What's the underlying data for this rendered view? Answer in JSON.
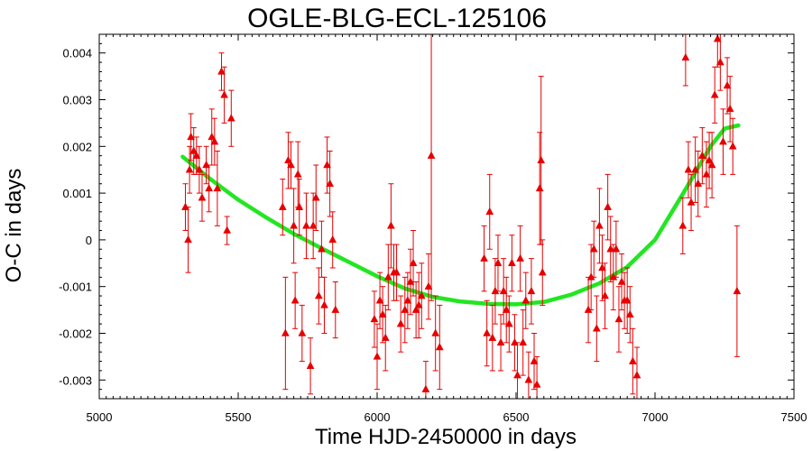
{
  "chart_data": {
    "type": "scatter",
    "title": "OGLE-BLG-ECL-125106",
    "xlabel": "Time HJD-2450000 in days",
    "ylabel": "O-C in days",
    "xlim": [
      5000,
      7500
    ],
    "ylim": [
      -0.0034,
      0.0044
    ],
    "x_ticks": [
      5000,
      5500,
      6000,
      6500,
      7000,
      7500
    ],
    "x_tick_labels": [
      "5000",
      "5500",
      "6000",
      "6500",
      "7000",
      "7500"
    ],
    "y_ticks": [
      -0.003,
      -0.002,
      -0.001,
      0,
      0.001,
      0.002,
      0.003,
      0.004
    ],
    "y_tick_labels": [
      "-0.003",
      "-0.002",
      "-0.001",
      "0",
      "0.001",
      "0.002",
      "0.003",
      "0.004"
    ],
    "grid": false,
    "legend": "none",
    "colors": {
      "points": "#e60000",
      "fit": "#22e622",
      "axes": "#000000"
    },
    "series": [
      {
        "kind": "points_with_error_bars",
        "marker": "triangle",
        "points": [
          {
            "x": 5310,
            "y": 0.0007,
            "err": 0.0005
          },
          {
            "x": 5320,
            "y": 0.0,
            "err": 0.0007
          },
          {
            "x": 5325,
            "y": 0.0015,
            "err": 0.0005
          },
          {
            "x": 5330,
            "y": 0.0022,
            "err": 0.0005
          },
          {
            "x": 5340,
            "y": 0.0019,
            "err": 0.0005
          },
          {
            "x": 5350,
            "y": 0.0018,
            "err": 0.0004
          },
          {
            "x": 5360,
            "y": 0.0015,
            "err": 0.0005
          },
          {
            "x": 5370,
            "y": 0.0009,
            "err": 0.0005
          },
          {
            "x": 5385,
            "y": 0.0016,
            "err": 0.0004
          },
          {
            "x": 5395,
            "y": 0.0011,
            "err": 0.0005
          },
          {
            "x": 5405,
            "y": 0.0022,
            "err": 0.0006
          },
          {
            "x": 5415,
            "y": 0.0021,
            "err": 0.0005
          },
          {
            "x": 5425,
            "y": 0.0011,
            "err": 0.0008
          },
          {
            "x": 5440,
            "y": 0.0036,
            "err": 0.0004
          },
          {
            "x": 5450,
            "y": 0.0031,
            "err": 0.0006
          },
          {
            "x": 5460,
            "y": 0.0002,
            "err": 0.0003
          },
          {
            "x": 5475,
            "y": 0.0026,
            "err": 0.0006
          },
          {
            "x": 5660,
            "y": 0.0007,
            "err": 0.0006
          },
          {
            "x": 5670,
            "y": -0.002,
            "err": 0.0012
          },
          {
            "x": 5680,
            "y": 0.0017,
            "err": 0.0006
          },
          {
            "x": 5690,
            "y": 0.0016,
            "err": 0.0005
          },
          {
            "x": 5700,
            "y": 0.0003,
            "err": 0.0008
          },
          {
            "x": 5705,
            "y": -0.0013,
            "err": 0.0006
          },
          {
            "x": 5715,
            "y": 0.0014,
            "err": 0.0007
          },
          {
            "x": 5720,
            "y": 0.0007,
            "err": 0.0006
          },
          {
            "x": 5730,
            "y": -0.002,
            "err": 0.0006
          },
          {
            "x": 5745,
            "y": 0.0003,
            "err": 0.0007
          },
          {
            "x": 5760,
            "y": -0.0027,
            "err": 0.0006
          },
          {
            "x": 5770,
            "y": 0.0003,
            "err": 0.0007
          },
          {
            "x": 5780,
            "y": 0.0009,
            "err": 0.0007
          },
          {
            "x": 5790,
            "y": -0.0012,
            "err": 0.0006
          },
          {
            "x": 5800,
            "y": -0.0002,
            "err": 0.0006
          },
          {
            "x": 5810,
            "y": -0.0014,
            "err": 0.0006
          },
          {
            "x": 5820,
            "y": 0.0016,
            "err": 0.0006
          },
          {
            "x": 5830,
            "y": 0.0012,
            "err": 0.0007
          },
          {
            "x": 5840,
            "y": 0.0,
            "err": 0.0006
          },
          {
            "x": 5850,
            "y": -0.0015,
            "err": 0.0006
          },
          {
            "x": 5990,
            "y": -0.0017,
            "err": 0.0006
          },
          {
            "x": 6000,
            "y": -0.0025,
            "err": 0.0007
          },
          {
            "x": 6010,
            "y": -0.0013,
            "err": 0.0006
          },
          {
            "x": 6020,
            "y": -0.0016,
            "err": 0.0006
          },
          {
            "x": 6030,
            "y": -0.0021,
            "err": 0.0007
          },
          {
            "x": 6040,
            "y": -0.0008,
            "err": 0.0007
          },
          {
            "x": 6050,
            "y": 0.0003,
            "err": 0.0009
          },
          {
            "x": 6060,
            "y": -0.0007,
            "err": 0.0006
          },
          {
            "x": 6070,
            "y": -0.0007,
            "err": 0.0006
          },
          {
            "x": 6085,
            "y": -0.0018,
            "err": 0.0006
          },
          {
            "x": 6100,
            "y": -0.0015,
            "err": 0.0007
          },
          {
            "x": 6110,
            "y": -0.0013,
            "err": 0.0006
          },
          {
            "x": 6120,
            "y": -0.0009,
            "err": 0.0007
          },
          {
            "x": 6130,
            "y": -0.0005,
            "err": 0.0007
          },
          {
            "x": 6140,
            "y": -0.0015,
            "err": 0.0006
          },
          {
            "x": 6150,
            "y": -0.0014,
            "err": 0.0007
          },
          {
            "x": 6160,
            "y": -0.0012,
            "err": 0.0007
          },
          {
            "x": 6175,
            "y": -0.0032,
            "err": 0.0006
          },
          {
            "x": 6185,
            "y": -0.001,
            "err": 0.0007
          },
          {
            "x": 6195,
            "y": 0.0018,
            "err": 0.0031
          },
          {
            "x": 6210,
            "y": -0.002,
            "err": 0.0008
          },
          {
            "x": 6225,
            "y": -0.0023,
            "err": 0.0009
          },
          {
            "x": 6385,
            "y": -0.0004,
            "err": 0.0007
          },
          {
            "x": 6395,
            "y": -0.002,
            "err": 0.0007
          },
          {
            "x": 6405,
            "y": 0.0006,
            "err": 0.0008
          },
          {
            "x": 6415,
            "y": -0.0021,
            "err": 0.0007
          },
          {
            "x": 6425,
            "y": -0.0011,
            "err": 0.0007
          },
          {
            "x": 6435,
            "y": -0.0005,
            "err": 0.0006
          },
          {
            "x": 6445,
            "y": -0.0022,
            "err": 0.0006
          },
          {
            "x": 6455,
            "y": -0.0011,
            "err": 0.0007
          },
          {
            "x": 6465,
            "y": -0.0015,
            "err": 0.0007
          },
          {
            "x": 6475,
            "y": -0.0018,
            "err": 0.0006
          },
          {
            "x": 6485,
            "y": -0.0005,
            "err": 0.0006
          },
          {
            "x": 6495,
            "y": -0.0022,
            "err": 0.0006
          },
          {
            "x": 6505,
            "y": -0.0029,
            "err": 0.0007
          },
          {
            "x": 6515,
            "y": -0.0004,
            "err": 0.0007
          },
          {
            "x": 6525,
            "y": -0.0022,
            "err": 0.0007
          },
          {
            "x": 6535,
            "y": -0.0013,
            "err": 0.0006
          },
          {
            "x": 6545,
            "y": -0.003,
            "err": 0.0006
          },
          {
            "x": 6555,
            "y": -0.0011,
            "err": 0.0007
          },
          {
            "x": 6565,
            "y": -0.0026,
            "err": 0.0006
          },
          {
            "x": 6575,
            "y": -0.0031,
            "err": 0.0006
          },
          {
            "x": 6585,
            "y": 0.0011,
            "err": 0.0012
          },
          {
            "x": 6590,
            "y": 0.0017,
            "err": 0.0018
          },
          {
            "x": 6595,
            "y": -0.0007,
            "err": 0.0007
          },
          {
            "x": 6760,
            "y": -0.0015,
            "err": 0.0007
          },
          {
            "x": 6770,
            "y": -0.0008,
            "err": 0.0007
          },
          {
            "x": 6780,
            "y": -0.0002,
            "err": 0.0006
          },
          {
            "x": 6790,
            "y": -0.0019,
            "err": 0.0007
          },
          {
            "x": 6800,
            "y": 0.0003,
            "err": 0.0008
          },
          {
            "x": 6810,
            "y": -0.0006,
            "err": 0.0007
          },
          {
            "x": 6820,
            "y": -0.0012,
            "err": 0.0007
          },
          {
            "x": 6830,
            "y": 0.0007,
            "err": 0.0007
          },
          {
            "x": 6840,
            "y": -0.0002,
            "err": 0.0007
          },
          {
            "x": 6850,
            "y": -0.0008,
            "err": 0.0007
          },
          {
            "x": 6860,
            "y": -0.0002,
            "err": 0.0006
          },
          {
            "x": 6870,
            "y": -0.0017,
            "err": 0.0007
          },
          {
            "x": 6880,
            "y": -0.0009,
            "err": 0.0006
          },
          {
            "x": 6890,
            "y": -0.0013,
            "err": 0.0006
          },
          {
            "x": 6900,
            "y": -0.0013,
            "err": 0.0007
          },
          {
            "x": 6910,
            "y": -0.0016,
            "err": 0.0006
          },
          {
            "x": 6920,
            "y": -0.0026,
            "err": 0.0007
          },
          {
            "x": 6935,
            "y": -0.0029,
            "err": 0.0006
          },
          {
            "x": 7100,
            "y": 0.0003,
            "err": 0.0006
          },
          {
            "x": 7110,
            "y": 0.0039,
            "err": 0.0006
          },
          {
            "x": 7120,
            "y": 0.0015,
            "err": 0.0006
          },
          {
            "x": 7130,
            "y": 0.0008,
            "err": 0.0006
          },
          {
            "x": 7145,
            "y": 0.0015,
            "err": 0.0007
          },
          {
            "x": 7155,
            "y": 0.0012,
            "err": 0.0007
          },
          {
            "x": 7170,
            "y": 0.0018,
            "err": 0.0006
          },
          {
            "x": 7185,
            "y": 0.0014,
            "err": 0.0007
          },
          {
            "x": 7195,
            "y": 0.0017,
            "err": 0.0006
          },
          {
            "x": 7205,
            "y": 0.0016,
            "err": 0.0007
          },
          {
            "x": 7215,
            "y": 0.0031,
            "err": 0.0006
          },
          {
            "x": 7225,
            "y": 0.0043,
            "err": 0.0006
          },
          {
            "x": 7235,
            "y": 0.0038,
            "err": 0.0006
          },
          {
            "x": 7245,
            "y": 0.0021,
            "err": 0.0007
          },
          {
            "x": 7260,
            "y": 0.0033,
            "err": 0.0006
          },
          {
            "x": 7270,
            "y": 0.0028,
            "err": 0.0007
          },
          {
            "x": 7280,
            "y": 0.002,
            "err": 0.0006
          },
          {
            "x": 7295,
            "y": -0.0011,
            "err": 0.0014
          }
        ]
      },
      {
        "kind": "fit_curve",
        "points": [
          {
            "x": 5300,
            "y": 0.00178
          },
          {
            "x": 5400,
            "y": 0.0013
          },
          {
            "x": 5500,
            "y": 0.00086
          },
          {
            "x": 5600,
            "y": 0.00048
          },
          {
            "x": 5700,
            "y": 0.00013
          },
          {
            "x": 5800,
            "y": -0.00018
          },
          {
            "x": 5900,
            "y": -0.00048
          },
          {
            "x": 6000,
            "y": -0.00078
          },
          {
            "x": 6100,
            "y": -0.00104
          },
          {
            "x": 6200,
            "y": -0.00122
          },
          {
            "x": 6300,
            "y": -0.00132
          },
          {
            "x": 6400,
            "y": -0.00137
          },
          {
            "x": 6500,
            "y": -0.00138
          },
          {
            "x": 6600,
            "y": -0.00133
          },
          {
            "x": 6700,
            "y": -0.00117
          },
          {
            "x": 6800,
            "y": -0.00093
          },
          {
            "x": 6900,
            "y": -0.00058
          },
          {
            "x": 7000,
            "y": 0.0
          },
          {
            "x": 7100,
            "y": 0.00098
          },
          {
            "x": 7200,
            "y": 0.002
          },
          {
            "x": 7250,
            "y": 0.00238
          },
          {
            "x": 7300,
            "y": 0.00245
          }
        ]
      }
    ]
  }
}
